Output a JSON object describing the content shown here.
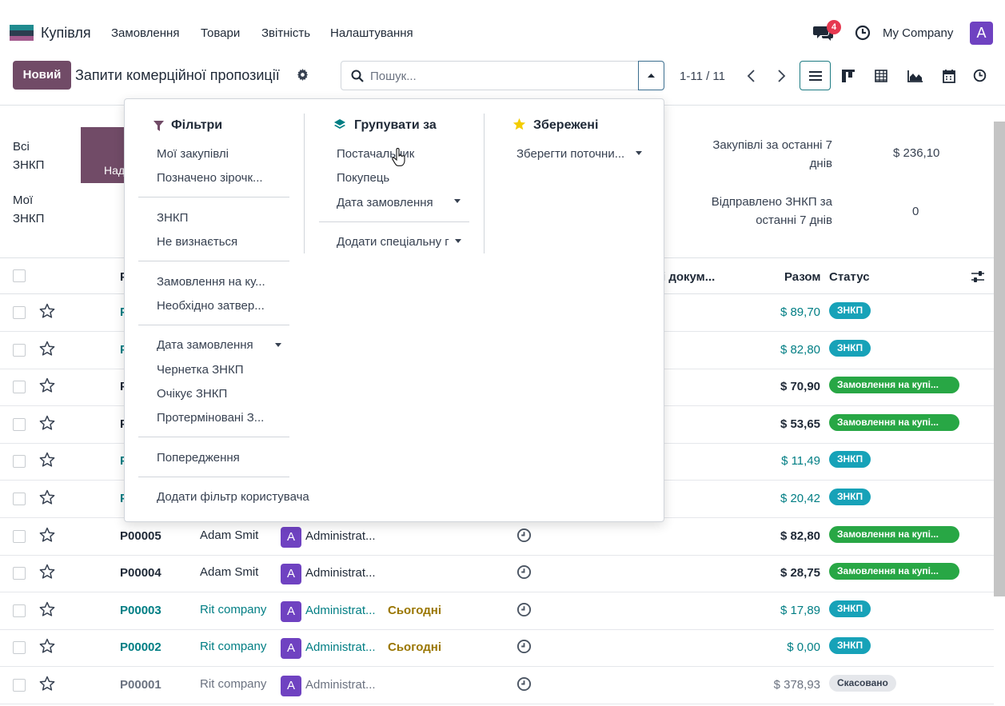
{
  "app": {
    "name": "Купівля"
  },
  "menu": [
    "Замовлення",
    "Товари",
    "Звітність",
    "Налаштування"
  ],
  "topbar": {
    "messages_count": "4",
    "company": "My Company",
    "user_initial": "A"
  },
  "control": {
    "new_label": "Новий",
    "title": "Запити комерційної пропозиції",
    "search_placeholder": "Пошук...",
    "pager": "1-11 / 11"
  },
  "stats": {
    "all_label_1": "Всі",
    "all_label_2": "ЗНКП",
    "my_label_1": "Мої",
    "my_label_2": "ЗНКП",
    "card_label": "Над",
    "purchases_7d_label_1": "Закупівлі за останні 7",
    "purchases_7d_label_2": "днів",
    "purchases_7d_value": "$ 236,10",
    "sent_7d_label_1": "Відправлено ЗНКП за",
    "sent_7d_label_2": "останні 7 днів",
    "sent_7d_value": "0"
  },
  "table": {
    "headers": {
      "ref": "Р",
      "docs": "і докум...",
      "total": "Разом",
      "status": "Статус"
    },
    "rows": [
      {
        "ref": "Р",
        "vendor": "",
        "buyer": "",
        "deadline": "",
        "total": "$ 89,70",
        "status": "ЗНКП",
        "kind": "rfq"
      },
      {
        "ref": "Р",
        "vendor": "",
        "buyer": "",
        "deadline": "",
        "total": "$ 82,80",
        "status": "ЗНКП",
        "kind": "rfq"
      },
      {
        "ref": "Р",
        "vendor": "",
        "buyer": "",
        "deadline": "",
        "total": "$ 70,90",
        "status": "Замовлення на купі...",
        "kind": "po"
      },
      {
        "ref": "Р",
        "vendor": "",
        "buyer": "",
        "deadline": "",
        "total": "$ 53,65",
        "status": "Замовлення на купі...",
        "kind": "po"
      },
      {
        "ref": "Р",
        "vendor": "",
        "buyer": "",
        "deadline": "",
        "total": "$ 11,49",
        "status": "ЗНКП",
        "kind": "rfq"
      },
      {
        "ref": "Р",
        "vendor": "",
        "buyer": "",
        "deadline": "",
        "total": "$ 20,42",
        "status": "ЗНКП",
        "kind": "rfq"
      },
      {
        "ref": "P00005",
        "vendor": "Adam Smit",
        "buyer": "Administrat...",
        "deadline": "",
        "total": "$ 82,80",
        "status": "Замовлення на купі...",
        "kind": "po"
      },
      {
        "ref": "P00004",
        "vendor": "Adam Smit",
        "buyer": "Administrat...",
        "deadline": "",
        "total": "$ 28,75",
        "status": "Замовлення на купі...",
        "kind": "po"
      },
      {
        "ref": "P00003",
        "vendor": "Rit company",
        "buyer": "Administrat...",
        "deadline": "Сьогодні",
        "total": "$ 17,89",
        "status": "ЗНКП",
        "kind": "rfq"
      },
      {
        "ref": "P00002",
        "vendor": "Rit company",
        "buyer": "Administrat...",
        "deadline": "Сьогодні",
        "total": "$ 0,00",
        "status": "ЗНКП",
        "kind": "rfq"
      },
      {
        "ref": "P00001",
        "vendor": "Rit company",
        "buyer": "Administrat...",
        "deadline": "",
        "total": "$ 378,93",
        "status": "Скасовано",
        "kind": "cancel"
      }
    ]
  },
  "dropdown": {
    "filters_title": "Фільтри",
    "filters": [
      "Мої закупівлі",
      "Позначено зірочк...",
      "ЗНКП",
      "Не визнається",
      "Замовлення на ку...",
      "Необхідно затвер...",
      "Дата замовлення",
      "Чернетка ЗНКП",
      "Очікує ЗНКП",
      "Протерміновані З...",
      "Попередження",
      "Додати фільтр користувача"
    ],
    "group_title": "Групувати за",
    "group": [
      "Постачальник",
      "Покупець",
      "Дата замовлення",
      "Додати спеціальну г"
    ],
    "saved_title": "Збережені",
    "saved": [
      "Зберегти поточни..."
    ]
  },
  "colors": {
    "brand": "#714b67",
    "teal": "#017e84",
    "rfq": "#17a2b8",
    "po": "#28a745",
    "warning": "#9a7600"
  }
}
